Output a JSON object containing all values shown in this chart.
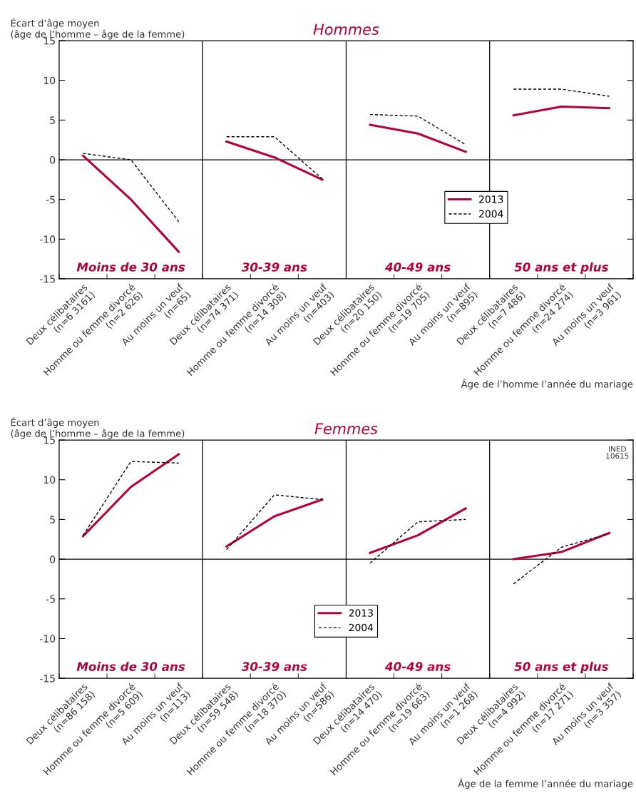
{
  "chart_data": [
    {
      "type": "line",
      "title": "Hommes",
      "ylabel": "Écart d’âge moyen\n(âge de l’homme – âge de la femme)",
      "xlabel": "Âge de l’homme l’année du mariage",
      "categories": [
        "Deux célibataires\n(n=6 3161)",
        "Homme ou femme divorcé\n(n=2 626)",
        "Au moins un veuf\n(n=65)",
        "Deux célibataires\n(n=74 371)",
        "Homme ou femme divorcé\n(n=14 308)",
        "Au moins un veuf\n(n=403)",
        "Deux célibataires\n(n=20 150)",
        "Homme ou femme divorcé\n(n=19 705)",
        "Au moins un veuf\n(n=895)",
        "Deux célibataires\n(n=7 486)",
        "Homme ou femme divorcé\n(n=24 274)",
        "Au moins un veuf\n(n=3 961)"
      ],
      "series": [
        {
          "name": "2013",
          "color": "#b5003c",
          "line_style": "solid",
          "values": [
            0.5,
            -5.0,
            -11.6,
            2.3,
            0.3,
            -2.5,
            4.4,
            3.3,
            1.0,
            5.6,
            6.7,
            6.5
          ]
        },
        {
          "name": "2004",
          "color": "#000000",
          "line_style": "dashed",
          "values": [
            0.8,
            0.0,
            -7.8,
            2.9,
            2.9,
            -2.4,
            5.7,
            5.5,
            1.9,
            8.9,
            8.9,
            8.0
          ]
        }
      ],
      "ylim": [
        -15,
        15
      ],
      "yticks": [
        -15,
        -10,
        -5,
        0,
        5,
        10,
        15
      ],
      "grid": false,
      "legend": "center right",
      "marker": "none",
      "ref_lines": [
        {
          "axis": "y",
          "value": 0
        }
      ],
      "annotations": [
        "Moins de 30 ans",
        "30-39 ans",
        "40-49 ans",
        "50 ans et plus"
      ]
    },
    {
      "type": "line",
      "title": "Femmes",
      "ylabel": "Écart d’âge moyen\n(âge de l’homme – âge de la femme)",
      "xlabel": "Âge de la femme l’année du mariage",
      "categories": [
        "Deux célibataires\n(n=86 158)",
        "Homme ou femme divorcé\n(n=5 609)",
        "Au moins un veuf\n(n=113)",
        "Deux célibataires\n(n=59 548)",
        "Homme ou femme divorcé\n(n=18 370)",
        "Au moins un veuf\n(n=586)",
        "Deux célibataires\n(n=14 470)",
        "Homme ou femme divorcé\n(n=19 663)",
        "Au moins un veuf\n(n=1 268)",
        "Deux célibataires\n(n=4 992)",
        "Homme ou femme divorcé\n(n=17 271)",
        "Au moins un veuf\n(n=3 357)"
      ],
      "series": [
        {
          "name": "2013",
          "color": "#b5003c",
          "line_style": "solid",
          "values": [
            2.9,
            9.1,
            13.2,
            1.6,
            5.4,
            7.5,
            0.8,
            3.0,
            6.4,
            0.0,
            0.9,
            3.3
          ]
        },
        {
          "name": "2004",
          "color": "#000000",
          "line_style": "dashed",
          "values": [
            3.0,
            12.3,
            12.1,
            1.2,
            8.1,
            7.5,
            -0.5,
            4.7,
            5.0,
            -3.1,
            1.5,
            3.2
          ]
        }
      ],
      "ylim": [
        -15,
        15
      ],
      "yticks": [
        -15,
        -10,
        -5,
        0,
        5,
        10,
        15
      ],
      "grid": false,
      "legend": "bottom",
      "marker": "none",
      "ref_lines": [
        {
          "axis": "y",
          "value": 0
        }
      ],
      "annotations": [
        "Moins de 30 ans",
        "30-39 ans",
        "40-49 ans",
        "50 ans et plus",
        "INED\n10615"
      ]
    }
  ]
}
